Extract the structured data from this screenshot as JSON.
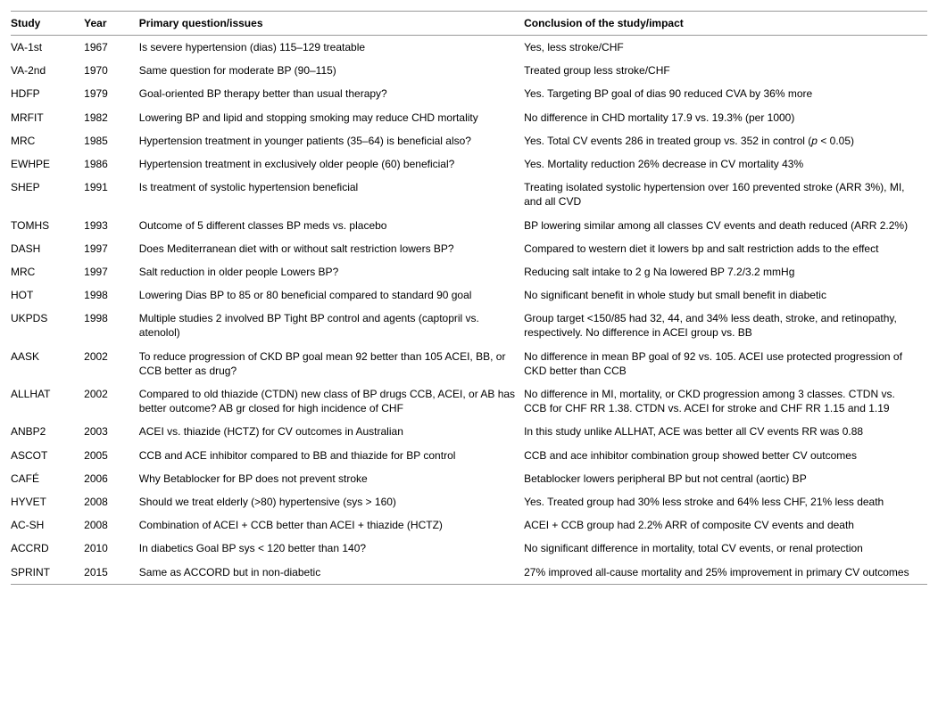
{
  "columns": [
    "Study",
    "Year",
    "Primary question/issues",
    "Conclusion of the study/impact"
  ],
  "column_widths_pct": [
    8,
    6,
    42,
    44
  ],
  "fontsize_pt": 12,
  "border_color": "#999999",
  "text_color": "#000000",
  "background_color": "#ffffff",
  "rows": [
    {
      "study": "VA-1st",
      "year": "1967",
      "question": "Is severe hypertension (dias) 115–129 treatable",
      "conclusion": "Yes, less stroke/CHF"
    },
    {
      "study": "VA-2nd",
      "year": "1970",
      "question": "Same question for moderate BP (90–115)",
      "conclusion": "Treated group less stroke/CHF"
    },
    {
      "study": "HDFP",
      "year": "1979",
      "question": "Goal-oriented BP therapy better than usual therapy?",
      "conclusion": "Yes. Targeting BP goal of dias 90 reduced CVA by 36% more"
    },
    {
      "study": "MRFIT",
      "year": "1982",
      "question": "Lowering BP and lipid and stopping smoking may reduce CHD mortality",
      "conclusion": "No difference in CHD mortality 17.9 vs. 19.3% (per 1000)"
    },
    {
      "study": "MRC",
      "year": "1985",
      "question": "Hypertension treatment in younger patients (35–64) is beneficial also?",
      "conclusion": "Yes. Total CV events 286 in treated group vs. 352 in control (p < 0.05)",
      "conclusion_html": "Yes. Total CV events 286 in treated group vs. 352 in control (<span class=\"ital\">p</span> &lt; 0.05)"
    },
    {
      "study": "EWHPE",
      "year": "1986",
      "question": "Hypertension treatment in exclusively older people (60) beneficial?",
      "conclusion": "Yes. Mortality reduction 26% decrease in CV mortality 43%"
    },
    {
      "study": "SHEP",
      "year": "1991",
      "question": "Is treatment of systolic hypertension beneficial",
      "conclusion": "Treating isolated systolic hypertension over 160 prevented stroke (ARR 3%), MI, and all CVD"
    },
    {
      "study": "TOMHS",
      "year": "1993",
      "question": "Outcome of 5 different classes BP meds vs. placebo",
      "conclusion": "BP lowering similar among all classes CV events and death reduced (ARR 2.2%)"
    },
    {
      "study": "DASH",
      "year": "1997",
      "question": "Does Mediterranean diet with or without salt restriction lowers BP?",
      "conclusion": "Compared to western diet it lowers bp and salt restriction adds to the effect"
    },
    {
      "study": "MRC",
      "year": "1997",
      "question": "Salt reduction in older people Lowers BP?",
      "conclusion": "Reducing salt intake to 2 g Na lowered BP 7.2/3.2 mmHg"
    },
    {
      "study": "HOT",
      "year": "1998",
      "question": "Lowering Dias BP to 85 or 80 beneficial compared to standard 90 goal",
      "conclusion": "No significant benefit in whole study but small benefit in diabetic"
    },
    {
      "study": "UKPDS",
      "year": "1998",
      "question": "Multiple studies 2 involved BP Tight BP control and agents (captopril vs. atenolol)",
      "conclusion": "Group target <150/85 had 32, 44, and 34% less death, stroke, and retinopathy, respectively. No difference in ACEI group vs. BB"
    },
    {
      "study": "AASK",
      "year": "2002",
      "question": "To reduce progression of CKD BP goal mean 92 better than 105 ACEI, BB, or CCB better as drug?",
      "conclusion": "No difference in mean BP goal of 92 vs. 105. ACEI use protected progression of CKD better than CCB"
    },
    {
      "study": "ALLHAT",
      "year": "2002",
      "question": "Compared to old thiazide (CTDN) new class of BP drugs CCB, ACEI, or AB has better outcome? AB gr closed for high incidence of CHF",
      "conclusion": "No difference in MI, mortality, or CKD progression among 3 classes. CTDN vs. CCB for CHF RR 1.38. CTDN vs. ACEI for stroke and CHF RR 1.15 and 1.19"
    },
    {
      "study": "ANBP2",
      "year": "2003",
      "question": "ACEI vs. thiazide (HCTZ) for CV outcomes in Australian",
      "conclusion": "In this study unlike ALLHAT, ACE was better all CV events RR was 0.88"
    },
    {
      "study": "ASCOT",
      "year": "2005",
      "question": "CCB and ACE inhibitor compared to BB and thiazide for BP control",
      "conclusion": "CCB and ace inhibitor combination group showed better CV outcomes"
    },
    {
      "study": "CAFÉ",
      "year": "2006",
      "question": "Why Betablocker for BP does not prevent stroke",
      "conclusion": "Betablocker lowers peripheral BP but not central (aortic) BP"
    },
    {
      "study": "HYVET",
      "year": "2008",
      "question": "Should we treat elderly (>80) hypertensive (sys > 160)",
      "conclusion": "Yes. Treated group had 30% less stroke and 64% less CHF, 21% less death"
    },
    {
      "study": "AC-SH",
      "year": "2008",
      "question": "Combination of ACEI + CCB better than ACEI + thiazide (HCTZ)",
      "conclusion": "ACEI + CCB group had 2.2% ARR of composite CV events and death"
    },
    {
      "study": "ACCRD",
      "year": "2010",
      "question": "In diabetics Goal BP sys < 120 better than 140?",
      "conclusion": "No significant difference in mortality, total CV events, or renal protection"
    },
    {
      "study": "SPRINT",
      "year": "2015",
      "question": "Same as ACCORD but in non-diabetic",
      "conclusion": "27% improved all-cause mortality and 25% improvement in primary CV outcomes"
    }
  ]
}
